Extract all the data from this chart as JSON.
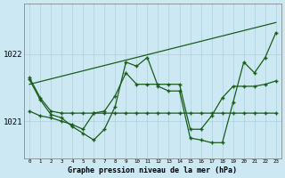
{
  "title": "Graphe pression niveau de la mer (hPa)",
  "bg_color": "#cce8f2",
  "grid_color": "#aad0dd",
  "line_color": "#1a5c1a",
  "yticks": [
    1021,
    1022
  ],
  "ylim": [
    1020.45,
    1022.75
  ],
  "xlim": [
    -0.5,
    23.5
  ],
  "series": {
    "diagonal": [
      1021.55,
      1021.59,
      1021.63,
      1021.67,
      1021.71,
      1021.75,
      1021.79,
      1021.83,
      1021.87,
      1021.91,
      1021.95,
      1021.99,
      1022.03,
      1022.07,
      1022.11,
      1022.15,
      1022.19,
      1022.23,
      1022.27,
      1022.31,
      1022.35,
      1022.39,
      1022.43,
      1022.47
    ],
    "slow_rise": [
      1021.65,
      1021.35,
      1021.15,
      1021.12,
      1021.12,
      1021.12,
      1021.12,
      1021.12,
      1021.12,
      1021.12,
      1021.12,
      1021.12,
      1021.12,
      1021.12,
      1021.12,
      1021.12,
      1021.12,
      1021.12,
      1021.12,
      1021.12,
      1021.12,
      1021.12,
      1021.12,
      1021.12
    ],
    "medium_wave": [
      1021.15,
      1021.08,
      1021.05,
      1021.0,
      1020.95,
      1020.88,
      1021.12,
      1021.15,
      1021.38,
      1021.72,
      1021.55,
      1021.55,
      1021.55,
      1021.55,
      1021.55,
      1020.88,
      1020.88,
      1021.08,
      1021.35,
      1021.52,
      1021.52,
      1021.52,
      1021.55,
      1021.6
    ],
    "big_wave": [
      1021.62,
      1021.32,
      1021.1,
      1021.05,
      1020.92,
      1020.82,
      1020.72,
      1020.88,
      1021.22,
      1021.88,
      1021.82,
      1021.95,
      1021.52,
      1021.45,
      1021.45,
      1020.75,
      1020.72,
      1020.68,
      1020.68,
      1021.28,
      1021.88,
      1021.72,
      1021.95,
      1022.32
    ]
  }
}
